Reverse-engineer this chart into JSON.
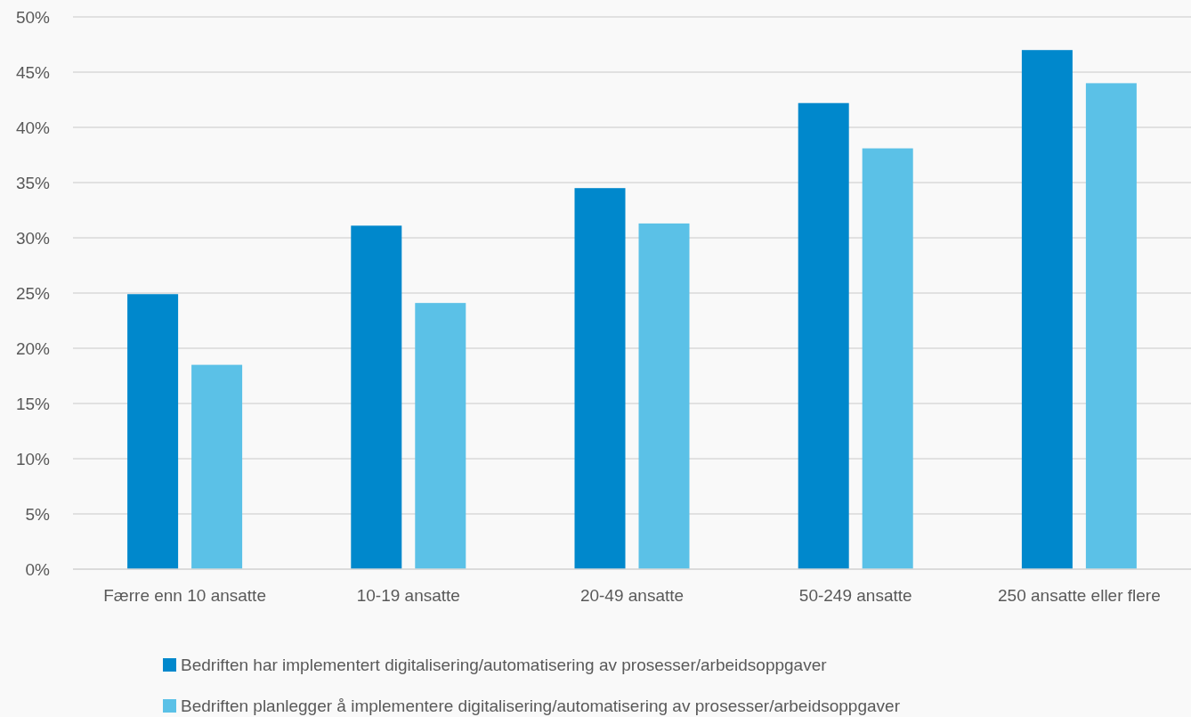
{
  "chart_data": {
    "type": "bar",
    "categories": [
      "Færre enn 10 ansatte",
      "10-19 ansatte",
      "20-49 ansatte",
      "50-249 ansatte",
      "250 ansatte eller flere"
    ],
    "series": [
      {
        "name": "Bedriften har implementert digitalisering/automatisering av prosesser/arbeidsoppgaver",
        "color": "#0088cc",
        "values": [
          24.9,
          31.1,
          34.5,
          42.2,
          47.0
        ]
      },
      {
        "name": "Bedriften planlegger å implementere digitalisering/automatisering av prosesser/arbeidsoppgaver",
        "color": "#5bc1e7",
        "values": [
          18.5,
          24.1,
          31.3,
          38.1,
          44.0
        ]
      }
    ],
    "ylim": [
      0,
      50
    ],
    "yticks": [
      {
        "value": 0,
        "label": "0%"
      },
      {
        "value": 5,
        "label": "5%"
      },
      {
        "value": 10,
        "label": "10%"
      },
      {
        "value": 15,
        "label": "15%"
      },
      {
        "value": 20,
        "label": "20%"
      },
      {
        "value": 25,
        "label": "25%"
      },
      {
        "value": 30,
        "label": "30%"
      },
      {
        "value": 35,
        "label": "35%"
      },
      {
        "value": 40,
        "label": "40%"
      },
      {
        "value": 45,
        "label": "45%"
      },
      {
        "value": 50,
        "label": "50%"
      }
    ],
    "grid": "y",
    "legend": "bottom"
  }
}
